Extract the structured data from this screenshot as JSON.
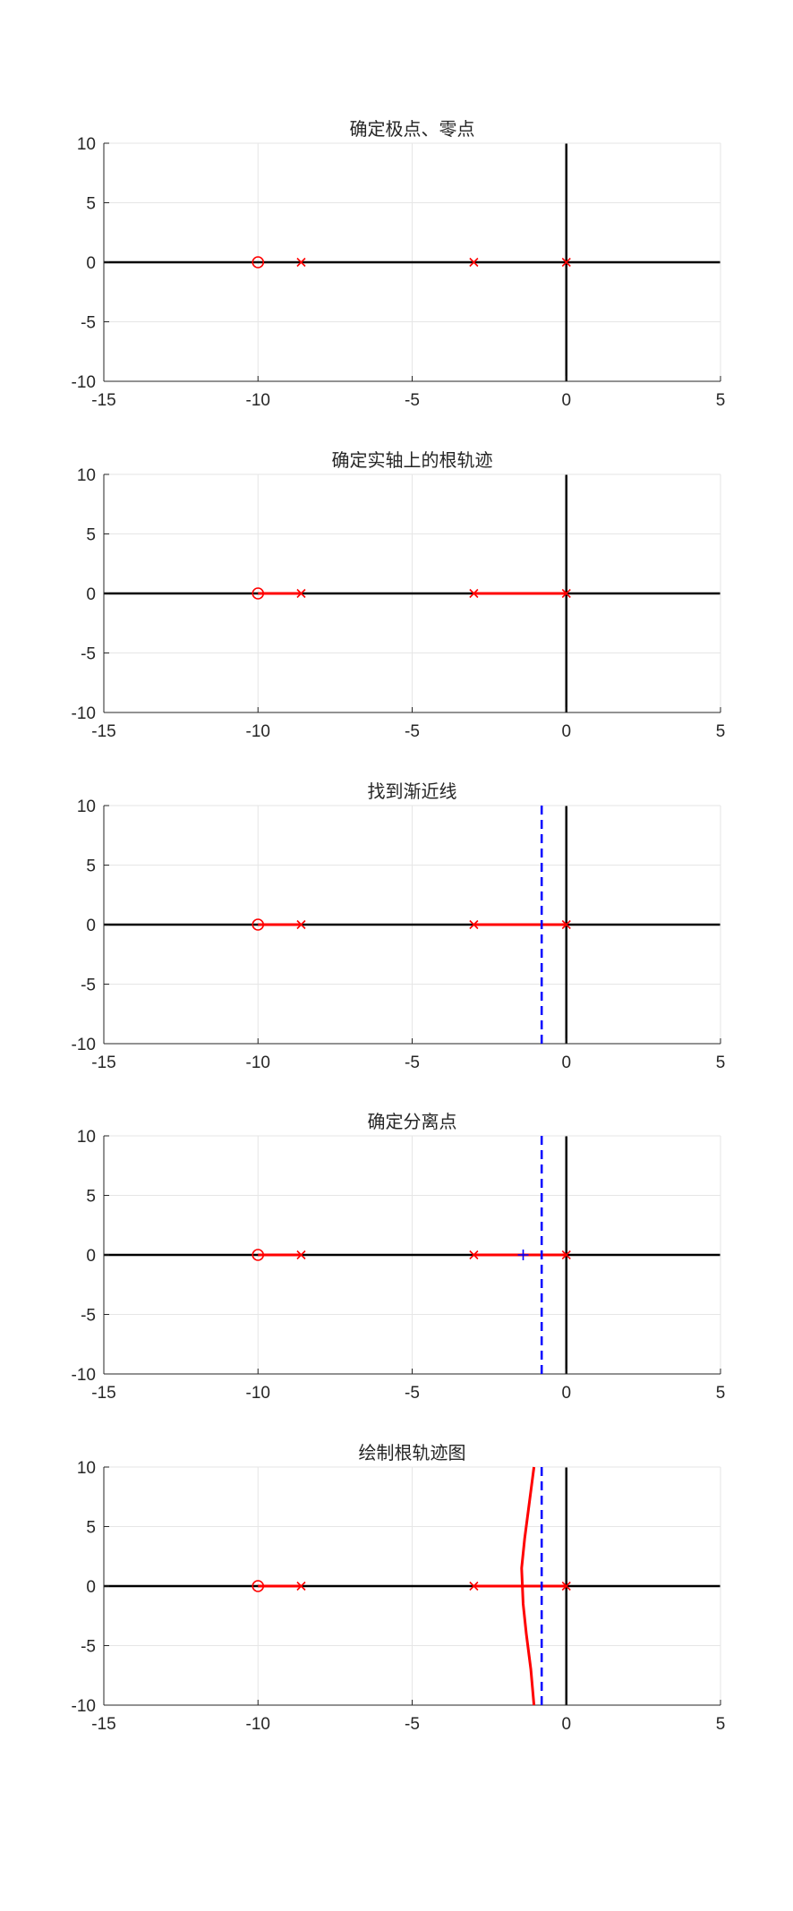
{
  "chart_data": [
    {
      "type": "scatter",
      "title": "确定极点、零点",
      "xlabel": "",
      "ylabel": "",
      "xlim": [
        -15,
        5
      ],
      "ylim": [
        -10,
        10
      ],
      "xticks": [
        -15,
        -10,
        -5,
        0,
        5
      ],
      "yticks": [
        10,
        5,
        0,
        -5,
        -10
      ],
      "grid": true,
      "series": [
        {
          "marker": "x",
          "color": "#ff0000",
          "x": [
            0,
            -3,
            -8.6
          ],
          "y": [
            0,
            0,
            0
          ]
        },
        {
          "marker": "o",
          "color": "#ff0000",
          "x": [
            -10
          ],
          "y": [
            0
          ]
        }
      ]
    },
    {
      "type": "line",
      "title": "确定实轴上的根轨迹",
      "xlabel": "",
      "ylabel": "",
      "xlim": [
        -15,
        5
      ],
      "ylim": [
        -10,
        10
      ],
      "xticks": [
        -15,
        -10,
        -5,
        0,
        5
      ],
      "yticks": [
        10,
        5,
        0,
        -5,
        -10
      ],
      "grid": true,
      "series": [
        {
          "marker": "x",
          "color": "#ff0000",
          "x": [
            0,
            -3,
            -8.6
          ],
          "y": [
            0,
            0,
            0
          ]
        },
        {
          "marker": "o",
          "color": "#ff0000",
          "x": [
            -10
          ],
          "y": [
            0
          ]
        },
        {
          "style": "solid",
          "color": "#ff0000",
          "x": [
            -3,
            0
          ],
          "y": [
            0,
            0
          ]
        },
        {
          "style": "solid",
          "color": "#ff0000",
          "x": [
            -10,
            -8.6
          ],
          "y": [
            0,
            0
          ]
        }
      ]
    },
    {
      "type": "line",
      "title": "找到渐近线",
      "xlabel": "",
      "ylabel": "",
      "xlim": [
        -15,
        5
      ],
      "ylim": [
        -10,
        10
      ],
      "xticks": [
        -15,
        -10,
        -5,
        0,
        5
      ],
      "yticks": [
        10,
        5,
        0,
        -5,
        -10
      ],
      "grid": true,
      "series": [
        {
          "marker": "x",
          "color": "#ff0000",
          "x": [
            0,
            -3,
            -8.6
          ],
          "y": [
            0,
            0,
            0
          ]
        },
        {
          "marker": "o",
          "color": "#ff0000",
          "x": [
            -10
          ],
          "y": [
            0
          ]
        },
        {
          "style": "solid",
          "color": "#ff0000",
          "x": [
            -3,
            0
          ],
          "y": [
            0,
            0
          ]
        },
        {
          "style": "solid",
          "color": "#ff0000",
          "x": [
            -10,
            -8.6
          ],
          "y": [
            0,
            0
          ]
        },
        {
          "style": "dashed",
          "color": "#0000ff",
          "x": [
            -0.8,
            -0.8
          ],
          "y": [
            -10,
            10
          ]
        }
      ]
    },
    {
      "type": "line",
      "title": "确定分离点",
      "xlabel": "",
      "ylabel": "",
      "xlim": [
        -15,
        5
      ],
      "ylim": [
        -10,
        10
      ],
      "xticks": [
        -15,
        -10,
        -5,
        0,
        5
      ],
      "yticks": [
        10,
        5,
        0,
        -5,
        -10
      ],
      "grid": true,
      "series": [
        {
          "marker": "x",
          "color": "#ff0000",
          "x": [
            0,
            -3,
            -8.6
          ],
          "y": [
            0,
            0,
            0
          ]
        },
        {
          "marker": "o",
          "color": "#ff0000",
          "x": [
            -10
          ],
          "y": [
            0
          ]
        },
        {
          "style": "solid",
          "color": "#ff0000",
          "x": [
            -3,
            0
          ],
          "y": [
            0,
            0
          ]
        },
        {
          "style": "solid",
          "color": "#ff0000",
          "x": [
            -10,
            -8.6
          ],
          "y": [
            0,
            0
          ]
        },
        {
          "style": "dashed",
          "color": "#0000ff",
          "x": [
            -0.8,
            -0.8
          ],
          "y": [
            -10,
            10
          ]
        },
        {
          "marker": "+",
          "color": "#0000ff",
          "x": [
            -1.4
          ],
          "y": [
            0
          ]
        }
      ]
    },
    {
      "type": "line",
      "title": "绘制根轨迹图",
      "xlabel": "",
      "ylabel": "",
      "xlim": [
        -15,
        5
      ],
      "ylim": [
        -10,
        10
      ],
      "xticks": [
        -15,
        -10,
        -5,
        0,
        5
      ],
      "yticks": [
        10,
        5,
        0,
        -5,
        -10
      ],
      "grid": true,
      "series": [
        {
          "marker": "x",
          "color": "#ff0000",
          "x": [
            0,
            -3,
            -8.6
          ],
          "y": [
            0,
            0,
            0
          ]
        },
        {
          "marker": "o",
          "color": "#ff0000",
          "x": [
            -10
          ],
          "y": [
            0
          ]
        },
        {
          "style": "solid",
          "color": "#ff0000",
          "x": [
            -3,
            0
          ],
          "y": [
            0,
            0
          ]
        },
        {
          "style": "solid",
          "color": "#ff0000",
          "x": [
            -10,
            -8.6
          ],
          "y": [
            0,
            0
          ]
        },
        {
          "style": "dashed",
          "color": "#0000ff",
          "x": [
            -0.8,
            -0.8
          ],
          "y": [
            -10,
            10
          ]
        },
        {
          "style": "solid",
          "color": "#ff0000",
          "x": [
            -1.05,
            -1.2,
            -1.35,
            -1.45,
            -1.4,
            -1.3,
            -1.15,
            -1.05
          ],
          "y": [
            10,
            7,
            4,
            1.5,
            -1.5,
            -4,
            -7,
            -10
          ]
        }
      ]
    }
  ]
}
